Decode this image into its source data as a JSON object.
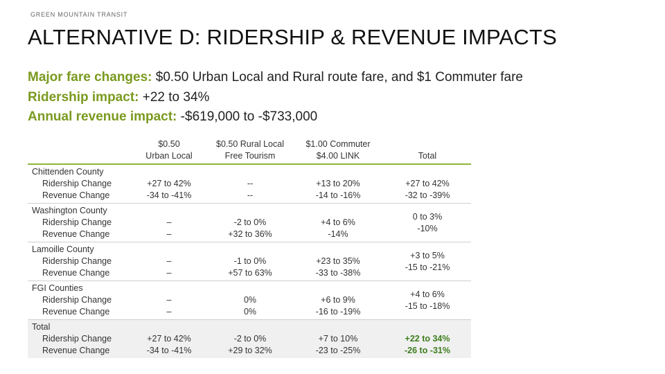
{
  "header": {
    "brand": "GREEN MOUNTAIN TRANSIT",
    "title": "ALTERNATIVE D:  RIDERSHIP & REVENUE IMPACTS"
  },
  "summary": {
    "fare_label": "Major fare changes:",
    "fare_value": "$0.50 Urban Local and Rural route fare, and $1 Commuter fare",
    "ridership_label": "Ridership impact:",
    "ridership_value": "+22 to 34%",
    "revenue_label": "Annual revenue impact:",
    "revenue_value": "-$619,000 to -$733,000"
  },
  "table": {
    "headers": [
      {
        "line1": "$0.50",
        "line2": "Urban Local"
      },
      {
        "line1": "$0.50 Rural Local",
        "line2": "Free Tourism"
      },
      {
        "line1": "$1.00 Commuter",
        "line2": "$4.00 LINK"
      },
      {
        "line1": "",
        "line2": "Total"
      }
    ],
    "rows": [
      {
        "region": "Chittenden County",
        "sub1": "Ridership Change",
        "sub2": "Revenue Change",
        "cells": [
          {
            "a": "+27 to 42%",
            "b": "-34 to -41%"
          },
          {
            "a": "--",
            "b": "--"
          },
          {
            "a": "+13 to 20%",
            "b": "-14 to -16%"
          },
          {
            "a": "+27 to 42%",
            "b": "-32 to -39%"
          }
        ]
      },
      {
        "region": "Washington County",
        "sub1": "Ridership Change",
        "sub2": "Revenue Change",
        "cells": [
          {
            "a": "–",
            "b": "–"
          },
          {
            "a": "-2 to 0%",
            "b": "+32 to 36%"
          },
          {
            "a": "+4 to 6%",
            "b": "-14%"
          },
          {
            "a": "0 to 3%",
            "b": "-10%"
          }
        ]
      },
      {
        "region": "Lamoille County",
        "sub1": "Ridership Change",
        "sub2": "Revenue Change",
        "cells": [
          {
            "a": "–",
            "b": "–"
          },
          {
            "a": "-1 to 0%",
            "b": "+57 to 63%"
          },
          {
            "a": "+23 to 35%",
            "b": "-33 to -38%"
          },
          {
            "a": "+3 to 5%",
            "b": "-15 to -21%"
          }
        ]
      },
      {
        "region": "FGI Counties",
        "sub1": "Ridership Change",
        "sub2": "Revenue Change",
        "cells": [
          {
            "a": "–",
            "b": "–"
          },
          {
            "a": "0%",
            "b": "0%"
          },
          {
            "a": "+6 to 9%",
            "b": "-16 to -19%"
          },
          {
            "a": "+4 to 6%",
            "b": "-15 to -18%"
          }
        ]
      },
      {
        "region": "Total",
        "sub1": "Ridership Change",
        "sub2": "Revenue Change",
        "cells": [
          {
            "a": "+27 to 42%",
            "b": "-34 to -41%"
          },
          {
            "a": "-2 to 0%",
            "b": "+29 to 32%"
          },
          {
            "a": "+7 to 10%",
            "b": "-23 to -25%"
          },
          {
            "a": "+22 to 34%",
            "b": "-26 to -31%"
          }
        ]
      }
    ]
  },
  "colors": {
    "label_green": "#7a9a1f",
    "rule_green": "#8fb43a",
    "total_bold": "#3d7d1d"
  }
}
